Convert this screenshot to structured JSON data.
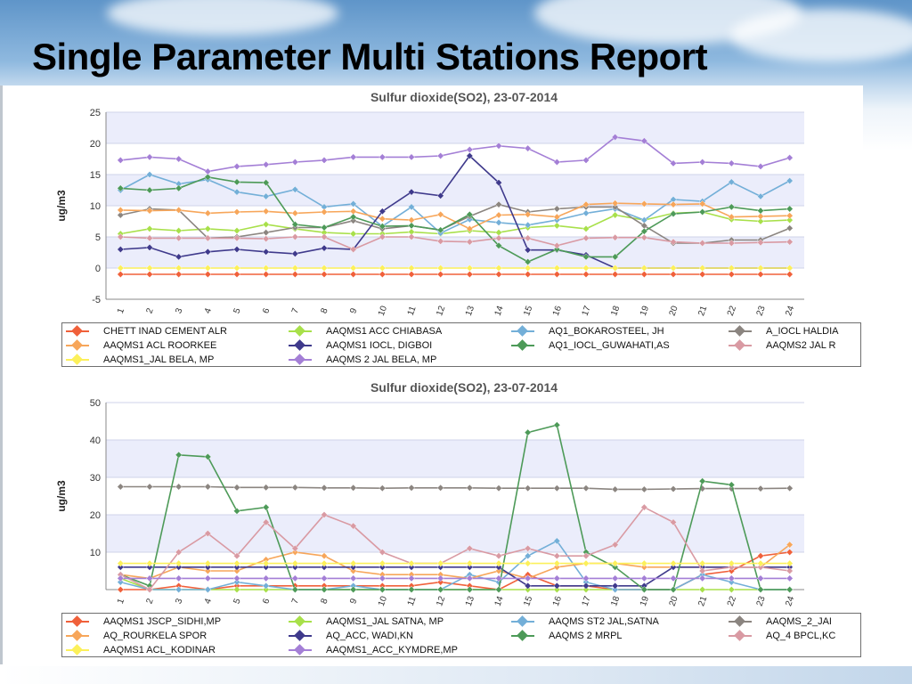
{
  "page": {
    "title": "Single Parameter Multi Stations Report"
  },
  "chart_data": [
    {
      "type": "line",
      "title": "Sulfur dioxide(SO2), 23-07-2014",
      "ylabel": "ug/m3",
      "xlabel": "",
      "ylim": [
        -5,
        25
      ],
      "yticks": [
        -5,
        0,
        5,
        10,
        15,
        20,
        25
      ],
      "x": [
        "1",
        "2",
        "3",
        "4",
        "5",
        "6",
        "7",
        "8",
        "9",
        "10",
        "11",
        "12",
        "13",
        "14",
        "15",
        "16",
        "17",
        "18",
        "19",
        "20",
        "21",
        "22",
        "23",
        "24"
      ],
      "grid": true,
      "legend_position": "bottom",
      "series": [
        {
          "name": "CHETT INAD CEMENT ALR",
          "color": "#f0603a",
          "values": [
            -1,
            -1,
            -1,
            -1,
            -1,
            -1,
            -1,
            -1,
            -1,
            -1,
            -1,
            -1,
            -1,
            -1,
            -1,
            -1,
            -1,
            -1,
            -1,
            -1,
            -1,
            -1,
            -1,
            -1
          ]
        },
        {
          "name": "AAQMS1 ACC CHIABASA",
          "color": "#a8e04a",
          "values": [
            5.5,
            6.3,
            6,
            6.3,
            6,
            7,
            6.3,
            5.7,
            5.5,
            5.5,
            5.8,
            5.5,
            6,
            5.7,
            6.5,
            6.8,
            6.3,
            8.5,
            7.7,
            8.8,
            9,
            7.8,
            7.5,
            7.7
          ]
        },
        {
          "name": "AQ1_BOKAROSTEEL, JH",
          "color": "#73afd8",
          "values": [
            12.5,
            15,
            13.5,
            14.2,
            12.2,
            11.5,
            12.6,
            9.8,
            10.3,
            6.7,
            9.8,
            5.6,
            7.8,
            7.3,
            6.9,
            7.7,
            8.8,
            9.5,
            7.7,
            11,
            10.7,
            13.8,
            11.5,
            14
          ]
        },
        {
          "name": "A_IOCL HALDIA",
          "color": "#8b8580",
          "values": [
            8.5,
            9.5,
            9.3,
            4.8,
            5,
            5.7,
            6.5,
            6.5,
            7.6,
            6.3,
            6.8,
            6.1,
            8.3,
            10.2,
            9,
            9.5,
            9.8,
            9.8,
            6.8,
            4,
            4,
            4.5,
            4.5,
            6.4
          ]
        },
        {
          "name": "AAQMS1 ACL ROORKEE",
          "color": "#f7a65a",
          "values": [
            9.3,
            9.2,
            9.3,
            8.8,
            9,
            9.1,
            8.8,
            9,
            9.1,
            7.9,
            7.7,
            8.6,
            6.3,
            8.5,
            8.6,
            8.2,
            10.2,
            10.4,
            10.3,
            10.2,
            10.3,
            8.2,
            8.3,
            8.4
          ]
        },
        {
          "name": "AAQMS1 IOCL, DIGBOI",
          "color": "#3f3a8c",
          "values": [
            3,
            3.3,
            1.8,
            2.6,
            3,
            2.6,
            2.3,
            3.2,
            3,
            9.1,
            12.2,
            11.6,
            18,
            13.7,
            2.9,
            2.9,
            2.1,
            0,
            0,
            0,
            0,
            0,
            0,
            0
          ]
        },
        {
          "name": "AQ1_IOCL_GUWAHATI,AS",
          "color": "#4d9a58",
          "values": [
            12.8,
            12.5,
            12.8,
            14.6,
            13.8,
            13.7,
            7,
            6.5,
            8.2,
            6.7,
            6.8,
            6.1,
            8.6,
            3.6,
            1,
            3,
            1.8,
            1.8,
            5.9,
            8.7,
            9,
            9.8,
            9.2,
            9.5
          ]
        },
        {
          "name": "AAQMS2 JAL R",
          "color": "#d99aa3",
          "values": [
            5,
            4.8,
            4.8,
            4.8,
            4.8,
            4.7,
            5,
            5,
            3,
            5,
            5,
            4.3,
            4.2,
            4.8,
            4.8,
            3.6,
            4.8,
            4.9,
            4.9,
            4.2,
            4,
            4,
            4.1,
            4.2
          ]
        },
        {
          "name": "AAQMS1_JAL BELA, MP",
          "color": "#fcf05a",
          "values": [
            0,
            0,
            0,
            0,
            0,
            0,
            0,
            0,
            0,
            0,
            0,
            0,
            0,
            0,
            0,
            0,
            0,
            0,
            0,
            0,
            0,
            0,
            0,
            0
          ]
        },
        {
          "name": "AAQMS 2 JAL BELA, MP",
          "color": "#a47fd6",
          "values": [
            17.3,
            17.8,
            17.5,
            15.5,
            16.3,
            16.6,
            17,
            17.3,
            17.8,
            17.8,
            17.8,
            18,
            19,
            19.6,
            19.2,
            17,
            17.3,
            21,
            20.4,
            16.8,
            17,
            16.8,
            16.3,
            17.7
          ]
        }
      ]
    },
    {
      "type": "line",
      "title": "Sulfur dioxide(SO2), 23-07-2014",
      "ylabel": "ug/m3",
      "xlabel": "",
      "ylim": [
        0,
        50
      ],
      "yticks": [
        10,
        20,
        30,
        40,
        50
      ],
      "x": [
        "1",
        "2",
        "3",
        "4",
        "5",
        "6",
        "7",
        "8",
        "9",
        "10",
        "11",
        "12",
        "13",
        "14",
        "15",
        "16",
        "17",
        "18",
        "19",
        "20",
        "21",
        "22",
        "23",
        "24"
      ],
      "grid": true,
      "legend_position": "bottom",
      "series": [
        {
          "name": "AAQMS1 JSCP_SIDHI,MP",
          "color": "#f0603a",
          "values": [
            0,
            0,
            1,
            0,
            1,
            1,
            1,
            1,
            1,
            1,
            1,
            2,
            1,
            0,
            4,
            1,
            1,
            0,
            0,
            0,
            4,
            5,
            9,
            10
          ]
        },
        {
          "name": "AAQMS1_JAL SATNA, MP",
          "color": "#a8e04a",
          "values": [
            3,
            0,
            0,
            0,
            0,
            0,
            0,
            0,
            0,
            0,
            0,
            0,
            0,
            0,
            0,
            0,
            0,
            0,
            0,
            0,
            0,
            0,
            0,
            0
          ]
        },
        {
          "name": "AAQMS ST2 JAL,SATNA",
          "color": "#73afd8",
          "values": [
            2,
            0,
            0,
            0,
            2,
            1,
            0,
            0,
            1,
            0,
            0,
            0,
            4,
            2,
            9,
            13,
            2,
            0,
            0,
            0,
            4,
            2,
            0,
            0
          ]
        },
        {
          "name": "AAQMS_2_JAI",
          "color": "#8b8580",
          "values": [
            27.5,
            27.5,
            27.5,
            27.5,
            27.3,
            27.3,
            27.3,
            27.2,
            27.2,
            27.1,
            27.2,
            27.2,
            27.2,
            27.1,
            27.1,
            27.1,
            27.1,
            26.8,
            26.8,
            26.9,
            27,
            27,
            27,
            27.1
          ]
        },
        {
          "name": "AQ_ROURKELA SPOR",
          "color": "#f7a65a",
          "values": [
            4,
            3,
            6,
            5,
            5,
            8,
            10,
            9,
            5,
            4,
            4,
            4,
            3,
            5,
            3,
            6,
            7,
            7,
            6,
            6,
            6,
            6,
            6,
            12
          ]
        },
        {
          "name": "AQ_ACC, WADI,KN",
          "color": "#3f3a8c",
          "values": [
            6,
            6,
            6,
            6,
            6,
            6,
            6,
            6,
            6,
            6,
            6,
            6,
            6,
            6,
            1,
            1,
            1,
            1,
            1,
            6,
            6,
            6,
            6,
            6
          ]
        },
        {
          "name": "AAQMS 2 MRPL",
          "color": "#4d9a58",
          "values": [
            4,
            1,
            36,
            35.5,
            21,
            22,
            0,
            0,
            0,
            0,
            0,
            0,
            0,
            0,
            42,
            44,
            10,
            6,
            0,
            0,
            29,
            28,
            0,
            0
          ]
        },
        {
          "name": "AQ_4 BPCL,KC",
          "color": "#d99aa3",
          "values": [
            4,
            0,
            10,
            15,
            9,
            18,
            11,
            20,
            17,
            10,
            7,
            7,
            11,
            9,
            11,
            9,
            9,
            12,
            22,
            18,
            5,
            6,
            6,
            5
          ]
        },
        {
          "name": "AAQMS1 ACL_KODINAR",
          "color": "#fcf05a",
          "values": [
            7,
            7,
            7,
            7,
            7,
            7,
            7,
            7,
            7,
            7,
            7,
            7,
            7,
            7,
            7,
            7,
            7,
            7,
            7,
            7,
            7,
            7,
            7,
            7
          ]
        },
        {
          "name": "AAQMS1_ACC_KYMDRE,MP",
          "color": "#a47fd6",
          "values": [
            3,
            3,
            3,
            3,
            3,
            3,
            3,
            3,
            3,
            3,
            3,
            3,
            3,
            3,
            3,
            3,
            3,
            3,
            3,
            3,
            3,
            3,
            3,
            3
          ]
        }
      ]
    }
  ]
}
